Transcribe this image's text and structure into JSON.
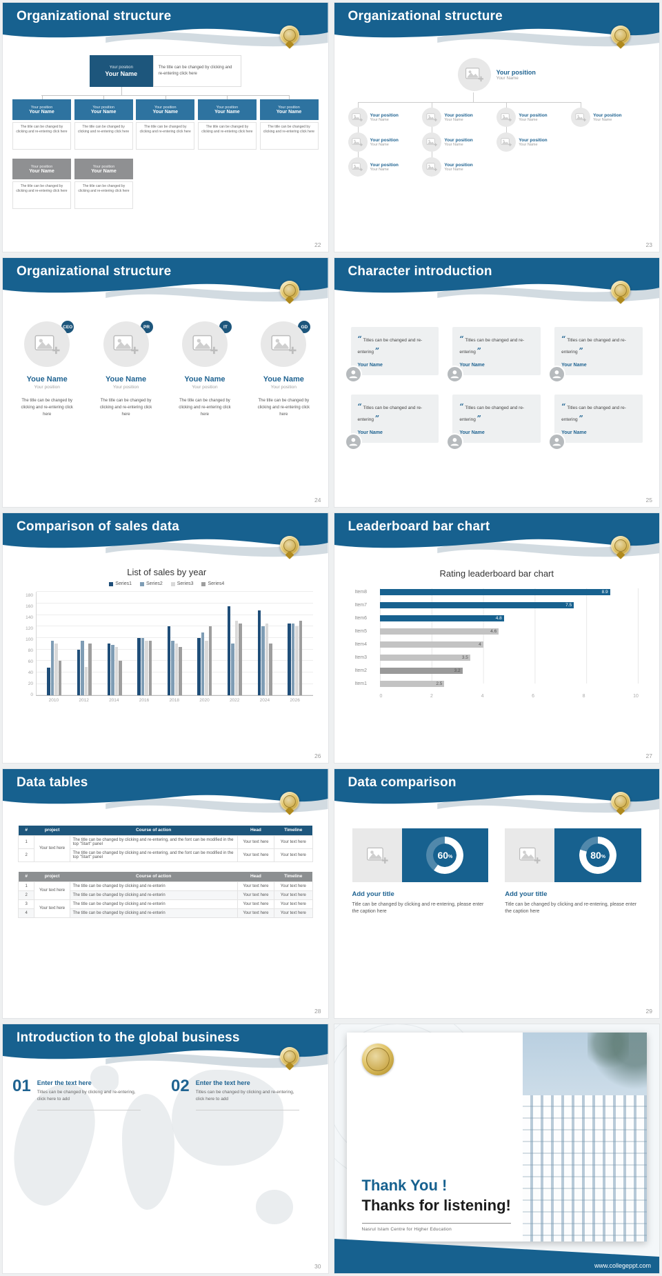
{
  "theme": {
    "header_blue": "#17618f",
    "accent_blue": "#1f6391",
    "box_blue": "#2e73a0",
    "navy": "#1d567c",
    "gray_box": "#8f9092",
    "gold": "#c9a227"
  },
  "s22": {
    "title": "Organizational structure",
    "page": "22",
    "root_position": "Your position",
    "root_name": "Your Name",
    "root_desc": "The title can be changed by clicking and re-entering click here",
    "box_position": "Your position",
    "box_name": "Your Name",
    "box_desc": "The title can be changed by clicking and re-entering click here"
  },
  "s23": {
    "title": "Organizational structure",
    "page": "23",
    "root_position": "Your position",
    "root_name": "Your Name",
    "node_position": "Your position",
    "node_name": "Your Name"
  },
  "s24": {
    "title": "Organizational structure",
    "page": "24",
    "badges": [
      "CEO",
      "PR",
      "IT",
      "GD"
    ],
    "name": "Youe Name",
    "position": "Your position",
    "desc": "The title can be changed by clicking and re-entering click here"
  },
  "s25": {
    "title": "Character introduction",
    "page": "25",
    "quote_open": "“",
    "quote_close": "”",
    "quote": "Titles can be changed and re-entering",
    "name": "Your Name"
  },
  "s26": {
    "title": "Comparison of sales data",
    "page": "26"
  },
  "s27": {
    "title": "Leaderboard bar chart",
    "page": "27"
  },
  "chart_data": [
    {
      "type": "bar",
      "slide": "26",
      "title": "List of sales by year",
      "legend": [
        "Series1",
        "Series2",
        "Series3",
        "Series4"
      ],
      "categories": [
        "2010",
        "2012",
        "2014",
        "2016",
        "2018",
        "2020",
        "2022",
        "2024",
        "2026"
      ],
      "series": [
        {
          "name": "Series1",
          "values": [
            48,
            80,
            90,
            100,
            120,
            100,
            155,
            148,
            125
          ]
        },
        {
          "name": "Series2",
          "values": [
            95,
            95,
            88,
            100,
            95,
            110,
            90,
            120,
            125
          ]
        },
        {
          "name": "Series3",
          "values": [
            90,
            50,
            85,
            95,
            90,
            95,
            130,
            125,
            120
          ]
        },
        {
          "name": "Series4",
          "values": [
            60,
            90,
            60,
            95,
            85,
            120,
            125,
            90,
            130
          ]
        }
      ],
      "ylim": [
        0,
        180
      ],
      "ytick_step": 20,
      "colors": [
        "#1f4e79",
        "#7f9db5",
        "#d9d9d9",
        "#9e9e9e"
      ],
      "grid": true,
      "legend_position": "top"
    },
    {
      "type": "bar",
      "orientation": "horizontal",
      "slide": "27",
      "title": "Rating leaderboard bar chart",
      "categories": [
        "Item8",
        "Item7",
        "Item6",
        "Item5",
        "Item4",
        "Item3",
        "Item2",
        "Item1"
      ],
      "values": [
        8.9,
        7.5,
        4.8,
        4.6,
        4,
        3.5,
        3.2,
        2.5
      ],
      "xlim": [
        0,
        10
      ],
      "xticks": [
        0,
        2,
        4,
        6,
        8,
        10
      ],
      "bar_colors": [
        "#17618f",
        "#17618f",
        "#17618f",
        "#c3c3c3",
        "#c3c3c3",
        "#c3c3c3",
        "#9a9a9a",
        "#c3c3c3"
      ],
      "grid": true
    }
  ],
  "s28": {
    "title": "Data tables",
    "page": "28",
    "t1": {
      "headers": [
        "#",
        "project",
        "Course of action",
        "Head",
        "Timeline"
      ],
      "project": "Your text here",
      "rows": [
        {
          "num": "1",
          "course": "The title can be changed by clicking and re-entering, and the font can be modified in the top \"Start\" panel",
          "head": "Your text here",
          "timeline": "Your text here"
        },
        {
          "num": "2",
          "course": "The title can be changed by clicking and re-entering, and the font can be modified in the top \"Start\" panel",
          "head": "Your text here",
          "timeline": "Your text here"
        }
      ]
    },
    "t2": {
      "headers": [
        "#",
        "project",
        "Course of action",
        "Head",
        "Timeline"
      ],
      "project": "Your text here",
      "rows": [
        {
          "num": "1",
          "course": "The title can be changed by clicking and re-enterin",
          "head": "Your text here",
          "timeline": "Your text here"
        },
        {
          "num": "2",
          "course": "The title can be changed by clicking and re-enterin",
          "head": "Your text here",
          "timeline": "Your text here"
        },
        {
          "num": "3",
          "course": "The title can be changed by clicking and re-enterin",
          "head": "Your text here",
          "timeline": "Your text here"
        },
        {
          "num": "4",
          "course": "The title can be changed by clicking and re-enterin",
          "head": "Your text here",
          "timeline": "Your text here"
        }
      ]
    }
  },
  "s29": {
    "title": "Data comparison",
    "page": "29",
    "percent_sign": "%",
    "items": [
      {
        "percent": "60",
        "title": "Add your title",
        "caption": "Title can be changed by clicking and re-entering, please enter the caption here"
      },
      {
        "percent": "80",
        "title": "Add your title",
        "caption": "Title can be changed by clicking and re-entering, please enter the caption here"
      }
    ]
  },
  "s30": {
    "title": "Introduction to the global business",
    "page": "30",
    "items": [
      {
        "num": "01",
        "heading": "Enter the text here",
        "body": "Titles can be changed by clicking and re-entering, click here to add"
      },
      {
        "num": "02",
        "heading": "Enter the text here",
        "body": "Titles can be changed by clicking and re-entering, click here to add"
      }
    ]
  },
  "s31": {
    "line1": "Thank You !",
    "line2": "Thanks for listening!",
    "subtitle": "Nasrul Islam Centre for Higher Education",
    "url": "www.collegeppt.com"
  }
}
